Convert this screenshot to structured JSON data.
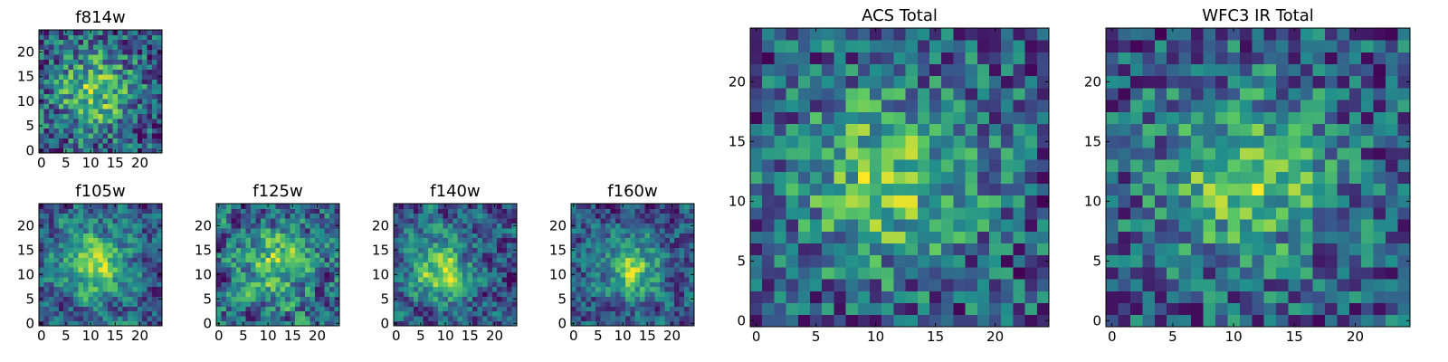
{
  "colors": {
    "colormap": [
      "#440154",
      "#3b528b",
      "#21918c",
      "#5ec962",
      "#fde725"
    ],
    "frame": "#000000",
    "background": "#ffffff"
  },
  "chart_data": [
    {
      "type": "heatmap",
      "id": "f814w",
      "title": "f814w",
      "grid": [
        25,
        25
      ],
      "xlim": [
        0,
        24
      ],
      "ylim": [
        0,
        24
      ],
      "xticks": [
        0,
        5,
        10,
        15,
        20
      ],
      "yticks": [
        0,
        5,
        10,
        15,
        20
      ],
      "seed": 814,
      "noise": 0.6,
      "blob": {
        "center": [
          11,
          12
        ],
        "sigma": 5.5,
        "amplitude": 0.45
      },
      "smooth": 0
    },
    {
      "type": "heatmap",
      "id": "f105w",
      "title": "f105w",
      "grid": [
        25,
        25
      ],
      "xlim": [
        0,
        24
      ],
      "ylim": [
        0,
        24
      ],
      "xticks": [
        0,
        5,
        10,
        15,
        20
      ],
      "yticks": [
        0,
        5,
        10,
        15,
        20
      ],
      "seed": 105,
      "noise": 0.55,
      "blob": {
        "center": [
          11,
          12
        ],
        "sigma": 5.0,
        "amplitude": 0.45
      },
      "smooth": 1
    },
    {
      "type": "heatmap",
      "id": "f125w",
      "title": "f125w",
      "grid": [
        25,
        25
      ],
      "xlim": [
        0,
        24
      ],
      "ylim": [
        0,
        24
      ],
      "xticks": [
        0,
        5,
        10,
        15,
        20
      ],
      "yticks": [
        0,
        5,
        10,
        15,
        20
      ],
      "seed": 125,
      "noise": 0.6,
      "blob": {
        "center": [
          11,
          12
        ],
        "sigma": 5.0,
        "amplitude": 0.35
      },
      "smooth": 1
    },
    {
      "type": "heatmap",
      "id": "f140w",
      "title": "f140w",
      "grid": [
        25,
        25
      ],
      "xlim": [
        0,
        24
      ],
      "ylim": [
        0,
        24
      ],
      "xticks": [
        0,
        5,
        10,
        15,
        20
      ],
      "yticks": [
        0,
        5,
        10,
        15,
        20
      ],
      "seed": 140,
      "noise": 0.55,
      "blob": {
        "center": [
          9,
          11
        ],
        "sigma": 4.5,
        "amplitude": 0.5
      },
      "smooth": 1
    },
    {
      "type": "heatmap",
      "id": "f160w",
      "title": "f160w",
      "grid": [
        25,
        25
      ],
      "xlim": [
        0,
        24
      ],
      "ylim": [
        0,
        24
      ],
      "xticks": [
        0,
        5,
        10,
        15,
        20
      ],
      "yticks": [
        0,
        5,
        10,
        15,
        20
      ],
      "seed": 160,
      "noise": 0.55,
      "blob": {
        "center": [
          12,
          11
        ],
        "sigma": 4.0,
        "amplitude": 0.55
      },
      "smooth": 1
    },
    {
      "type": "heatmap",
      "id": "acs-total",
      "title": "ACS Total",
      "grid": [
        25,
        25
      ],
      "xlim": [
        0,
        24
      ],
      "ylim": [
        0,
        24
      ],
      "xticks": [
        0,
        5,
        10,
        15,
        20
      ],
      "yticks": [
        0,
        5,
        10,
        15,
        20
      ],
      "seed": 2001,
      "noise": 0.6,
      "blob": {
        "center": [
          11,
          12
        ],
        "sigma": 5.5,
        "amplitude": 0.45
      },
      "smooth": 0
    },
    {
      "type": "heatmap",
      "id": "wfc3-ir-total",
      "title": "WFC3 IR Total",
      "grid": [
        25,
        25
      ],
      "xlim": [
        0,
        24
      ],
      "ylim": [
        0,
        24
      ],
      "xticks": [
        0,
        5,
        10,
        15,
        20
      ],
      "yticks": [
        0,
        5,
        10,
        15,
        20
      ],
      "seed": 3003,
      "noise": 0.6,
      "blob": {
        "center": [
          11,
          12
        ],
        "sigma": 5.0,
        "amplitude": 0.45
      },
      "smooth": 0
    }
  ]
}
